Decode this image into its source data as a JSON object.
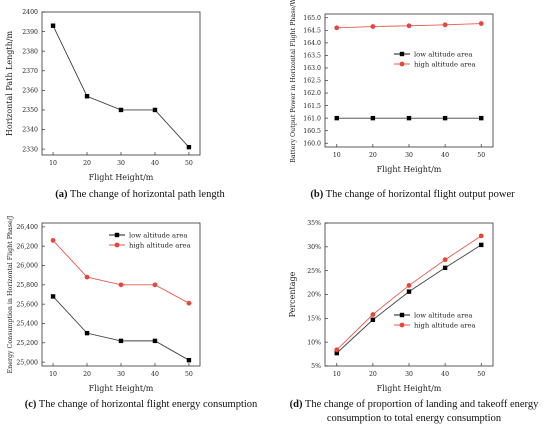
{
  "captions": [
    {
      "letter": "(a)",
      "text": " The change of horizontal path length"
    },
    {
      "letter": "(b)",
      "text": " The change of horizontal flight output power"
    },
    {
      "letter": "(c)",
      "text": " The change of horizontal flight energy consumption"
    },
    {
      "letter": "(d)",
      "text": " The change of proportion of landing and takeoff energy consumption to total energy consumption"
    }
  ],
  "chart_data": [
    {
      "type": "line",
      "title": "",
      "xlabel": "Flight Height/m",
      "ylabel": "Horizontal Path Length/m",
      "x": [
        10,
        20,
        30,
        40,
        50
      ],
      "xticks": [
        "10",
        "20",
        "30",
        "40",
        "50"
      ],
      "yticks": [
        "2330",
        "2340",
        "2350",
        "2360",
        "2370",
        "2380",
        "2390",
        "2400"
      ],
      "ylim": [
        2327,
        2400
      ],
      "series": [
        {
          "name": "",
          "color": "#000000",
          "marker": "square",
          "values": [
            2393,
            2357,
            2350,
            2350,
            2331
          ]
        }
      ],
      "legend": "none"
    },
    {
      "type": "line",
      "title": "",
      "xlabel": "Flight Height/m",
      "ylabel": "Battery Output Power in Horizontal Flight Phase/W",
      "x": [
        10,
        20,
        30,
        40,
        50
      ],
      "xticks": [
        "10",
        "20",
        "30",
        "40",
        "50"
      ],
      "yticks": [
        "160.0",
        "160.5",
        "161.0",
        "161.5",
        "162.0",
        "162.5",
        "163.0",
        "163.5",
        "164.0",
        "164.5",
        "165.0"
      ],
      "ylim": [
        159.85,
        165.15
      ],
      "series": [
        {
          "name": "low altitude area",
          "color": "#000000",
          "marker": "square",
          "values": [
            161.0,
            161.0,
            161.0,
            161.0,
            161.0
          ]
        },
        {
          "name": "high altitude area",
          "color": "#e8463c",
          "marker": "circle",
          "values": [
            164.6,
            164.65,
            164.68,
            164.72,
            164.77
          ]
        }
      ],
      "legend": "right"
    },
    {
      "type": "line",
      "title": "",
      "xlabel": "Flight Height/m",
      "ylabel": "Energy Consumption in Horizontal Flight Phase/J",
      "x": [
        10,
        20,
        30,
        40,
        50
      ],
      "xticks": [
        "10",
        "20",
        "30",
        "40",
        "50"
      ],
      "yticks": [
        "25,000",
        "25,200",
        "25,400",
        "25,600",
        "25,800",
        "26,000",
        "26,200",
        "26,400"
      ],
      "ylim": [
        24960,
        26440
      ],
      "series": [
        {
          "name": "low altitude area",
          "color": "#000000",
          "marker": "square",
          "values": [
            25680,
            25300,
            25220,
            25220,
            25020
          ]
        },
        {
          "name": "high altitude area",
          "color": "#e8463c",
          "marker": "circle",
          "values": [
            26260,
            25880,
            25800,
            25800,
            25610
          ]
        }
      ],
      "legend": "top-right"
    },
    {
      "type": "line",
      "title": "",
      "xlabel": "Flight Height/m",
      "ylabel": "Percentage",
      "x": [
        10,
        20,
        30,
        40,
        50
      ],
      "xticks": [
        "10",
        "20",
        "30",
        "40",
        "50"
      ],
      "yticks": [
        "5%",
        "10%",
        "15%",
        "20%",
        "25%",
        "30%",
        "35%"
      ],
      "ylim": [
        5,
        35
      ],
      "series": [
        {
          "name": "low altitude area",
          "color": "#000000",
          "marker": "square",
          "values": [
            7.7,
            14.7,
            20.6,
            25.6,
            30.4
          ]
        },
        {
          "name": "high altitude area",
          "color": "#e8463c",
          "marker": "circle",
          "values": [
            8.4,
            15.8,
            21.9,
            27.3,
            32.3
          ]
        }
      ],
      "legend": "bottom-right"
    }
  ]
}
